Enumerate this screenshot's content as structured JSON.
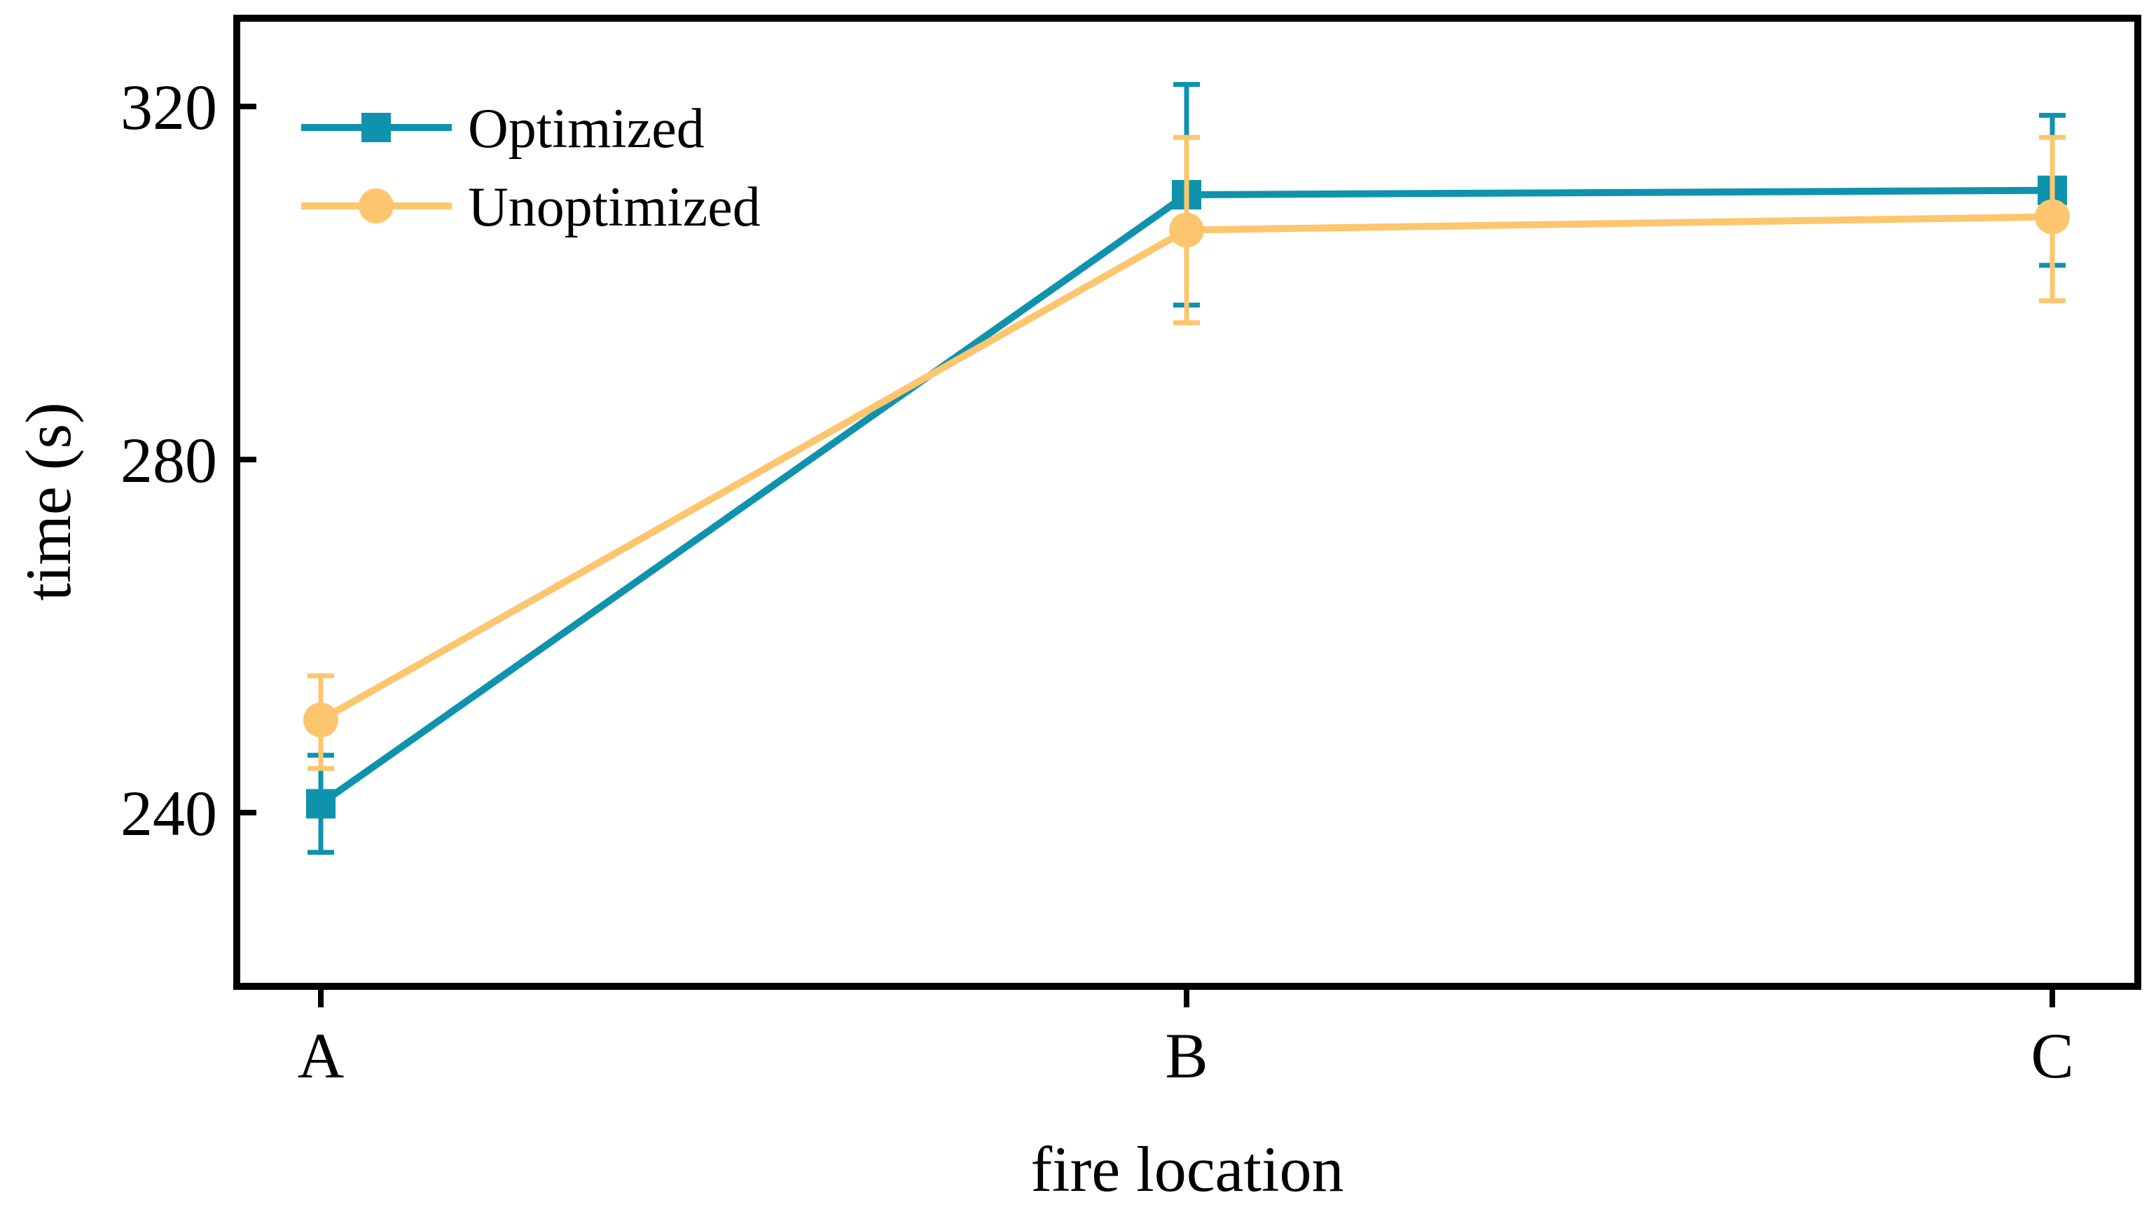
{
  "chart_data": {
    "type": "line",
    "title": "",
    "xlabel": "fire location",
    "ylabel": "time (s)",
    "categories": [
      "A",
      "B",
      "C"
    ],
    "ylim": [
      220,
      330
    ],
    "yticks": [
      240,
      280,
      320
    ],
    "ytick_labels": [
      "240",
      "280",
      "320"
    ],
    "grid": false,
    "legend_position": "top-left",
    "series": [
      {
        "name": "Optimized",
        "marker": "square",
        "color": "#0f92ad",
        "values": [
          241,
          310,
          310.5
        ],
        "err_low": [
          5.5,
          12.5,
          8.5
        ],
        "err_high": [
          5.5,
          12.5,
          8.5
        ]
      },
      {
        "name": "Unoptimized",
        "marker": "circle",
        "color": "#fdc66e",
        "values": [
          250.5,
          306,
          307.5
        ],
        "err_low": [
          5.5,
          10.5,
          9.5
        ],
        "err_high": [
          5,
          10.5,
          9
        ]
      }
    ]
  }
}
